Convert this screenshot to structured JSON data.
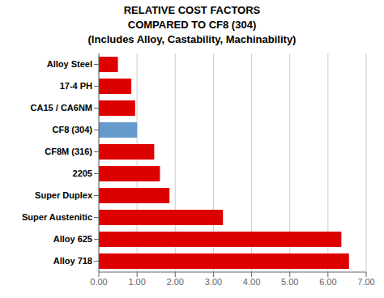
{
  "chart_data": {
    "type": "bar",
    "orientation": "horizontal",
    "title": "RELATIVE COST FACTORS\nCOMPARED TO CF8 (304)\n(Includes Alloy, Castability, Machinability)",
    "categories": [
      "Alloy Steel",
      "17-4 PH",
      "CA15 / CA6NM",
      "CF8 (304)",
      "CF8M (316)",
      "2205",
      "Super Duplex",
      "Super Austenitic",
      "Alloy 625",
      "Alloy 718"
    ],
    "values": [
      0.5,
      0.85,
      0.95,
      1.0,
      1.45,
      1.6,
      1.85,
      3.25,
      6.35,
      6.55
    ],
    "colors": [
      "#dd0000",
      "#dd0000",
      "#dd0000",
      "#6699cc",
      "#dd0000",
      "#dd0000",
      "#dd0000",
      "#dd0000",
      "#dd0000",
      "#dd0000"
    ],
    "xlim": [
      0,
      7.0
    ],
    "xticks": [
      {
        "value": 0.0,
        "label": "0.00"
      },
      {
        "value": 1.0,
        "label": "1.00"
      },
      {
        "value": 2.0,
        "label": "2.00"
      },
      {
        "value": 3.0,
        "label": "3.00"
      },
      {
        "value": 4.0,
        "label": "4.00"
      },
      {
        "value": 5.0,
        "label": "5.00"
      },
      {
        "value": 6.0,
        "label": "6.00"
      },
      {
        "value": 7.0,
        "label": "7.00"
      }
    ],
    "grid": true
  }
}
